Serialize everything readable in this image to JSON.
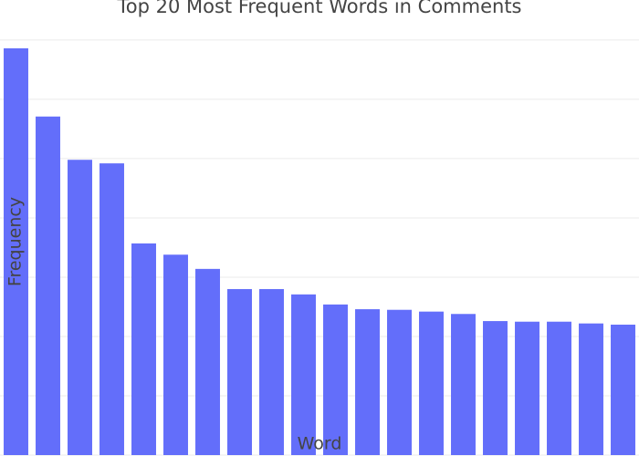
{
  "chart_data": {
    "type": "bar",
    "title": "Top 20 Most Frequent Words in Comments",
    "x_label": "Word",
    "y_label": "Frequency",
    "categories": [
      null,
      null,
      null,
      null,
      null,
      null,
      null,
      null,
      null,
      null,
      null,
      null,
      null,
      null,
      null,
      null,
      null,
      null,
      null,
      null
    ],
    "values": [
      6.86,
      5.71,
      4.98,
      4.92,
      3.57,
      3.38,
      3.14,
      2.8,
      2.8,
      2.71,
      2.54,
      2.46,
      2.45,
      2.42,
      2.38,
      2.26,
      2.25,
      2.25,
      2.22,
      2.2
    ],
    "color": "#636efa",
    "ylim": [
      0,
      7.06
    ],
    "yticks": [
      0,
      1,
      2,
      3,
      4,
      5,
      6,
      7
    ],
    "grid": true
  }
}
